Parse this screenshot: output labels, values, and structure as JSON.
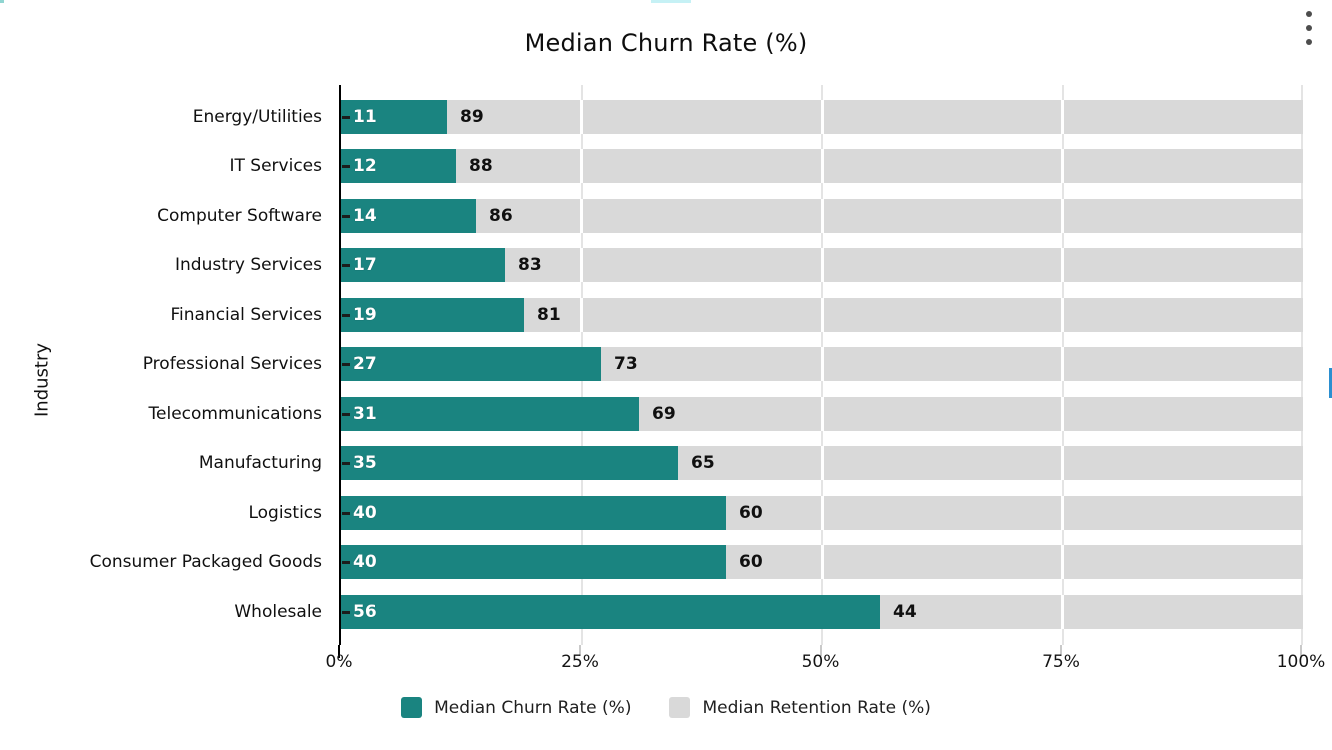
{
  "header": {
    "title": "Median Churn Rate (%)"
  },
  "y_axis_title": "Industry",
  "x_axis": {
    "ticks": [
      "0%",
      "25%",
      "50%",
      "75%",
      "100%"
    ]
  },
  "legend": {
    "items": [
      {
        "label": "Median Churn Rate (%)",
        "color": "#1a8480"
      },
      {
        "label": "Median Retention Rate (%)",
        "color": "#d9d9d9"
      }
    ]
  },
  "colors": {
    "churn": "#1a8480",
    "retention": "#d9d9d9",
    "gridline": "#e4e4e4",
    "axis_line": "#000000"
  },
  "chart_data": {
    "type": "bar",
    "orientation": "horizontal",
    "stacked": true,
    "title": "Median Churn Rate (%)",
    "xlabel": "",
    "ylabel": "Industry",
    "xlim": [
      0,
      100
    ],
    "x_tick_labels": [
      "0%",
      "25%",
      "50%",
      "75%",
      "100%"
    ],
    "grid": true,
    "legend_position": "bottom",
    "categories": [
      "Energy/Utilities",
      "IT Services",
      "Computer Software",
      "Industry Services",
      "Financial Services",
      "Professional Services",
      "Telecommunications",
      "Manufacturing",
      "Logistics",
      "Consumer Packaged Goods",
      "Wholesale"
    ],
    "series": [
      {
        "name": "Median Churn Rate (%)",
        "color": "#1a8480",
        "values": [
          11,
          12,
          14,
          17,
          19,
          27,
          31,
          35,
          40,
          40,
          56
        ]
      },
      {
        "name": "Median Retention Rate (%)",
        "color": "#d9d9d9",
        "values": [
          89,
          88,
          86,
          83,
          81,
          73,
          69,
          65,
          60,
          60,
          44
        ]
      }
    ]
  }
}
